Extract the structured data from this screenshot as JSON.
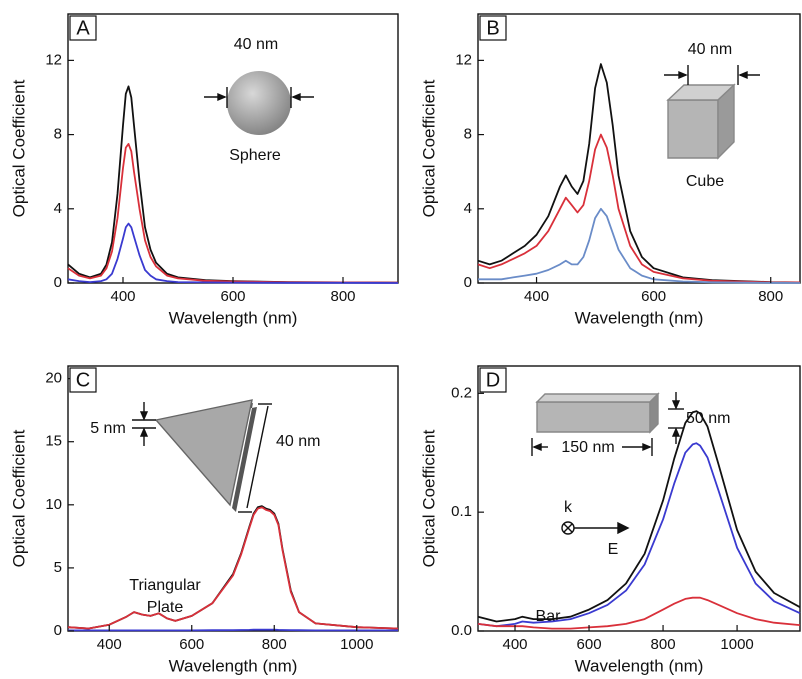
{
  "chart_data": [
    {
      "type": "line",
      "label": "A",
      "xlabel": "Wavelength (nm)",
      "ylabel": "Optical Coefficient",
      "annotations": [
        "40 nm",
        "Sphere"
      ],
      "xlim": [
        300,
        900
      ],
      "ylim": [
        0,
        14.5
      ],
      "xticks": [
        400,
        600,
        800
      ],
      "yticks": [
        0,
        4,
        8,
        12
      ],
      "x": [
        300,
        320,
        340,
        360,
        370,
        380,
        390,
        400,
        405,
        410,
        415,
        420,
        430,
        440,
        450,
        460,
        480,
        500,
        550,
        600,
        700,
        800,
        900
      ],
      "series": [
        {
          "color": "#111111",
          "values": [
            1.0,
            0.5,
            0.3,
            0.5,
            1.0,
            2.2,
            4.8,
            8.5,
            10.2,
            10.6,
            10.0,
            8.5,
            5.5,
            3.0,
            1.8,
            1.1,
            0.5,
            0.3,
            0.15,
            0.1,
            0.05,
            0.03,
            0.02
          ]
        },
        {
          "color": "#d9303a",
          "values": [
            0.8,
            0.4,
            0.25,
            0.4,
            0.8,
            1.7,
            3.5,
            6.2,
            7.3,
            7.5,
            7.1,
            6.0,
            4.0,
            2.3,
            1.4,
            0.9,
            0.4,
            0.25,
            0.12,
            0.08,
            0.04,
            0.03,
            0.02
          ]
        },
        {
          "color": "#3a3ad0",
          "values": [
            0.2,
            0.1,
            0.05,
            0.1,
            0.2,
            0.5,
            1.3,
            2.4,
            3.0,
            3.2,
            3.0,
            2.5,
            1.5,
            0.7,
            0.4,
            0.2,
            0.1,
            0.05,
            0.03,
            0.02,
            0.01,
            0.01,
            0.0
          ]
        }
      ]
    },
    {
      "type": "line",
      "label": "B",
      "xlabel": "Wavelength (nm)",
      "ylabel": "Optical Coefficient",
      "annotations": [
        "40 nm",
        "Cube"
      ],
      "xlim": [
        300,
        850
      ],
      "ylim": [
        0,
        14.5
      ],
      "xticks": [
        400,
        600,
        800
      ],
      "yticks": [
        0,
        4,
        8,
        12
      ],
      "x": [
        300,
        320,
        340,
        360,
        380,
        400,
        420,
        440,
        450,
        460,
        470,
        480,
        490,
        500,
        510,
        520,
        530,
        540,
        560,
        580,
        600,
        650,
        700,
        800,
        850
      ],
      "series": [
        {
          "color": "#111111",
          "values": [
            1.2,
            1.0,
            1.2,
            1.6,
            2.0,
            2.6,
            3.6,
            5.2,
            5.8,
            5.2,
            4.8,
            5.5,
            7.5,
            10.5,
            11.8,
            10.8,
            8.5,
            5.8,
            2.8,
            1.4,
            0.8,
            0.3,
            0.15,
            0.05,
            0.03
          ]
        },
        {
          "color": "#d9303a",
          "values": [
            1.0,
            0.8,
            1.0,
            1.3,
            1.6,
            2.0,
            2.8,
            4.0,
            4.6,
            4.2,
            3.8,
            4.2,
            5.5,
            7.2,
            8.0,
            7.3,
            5.8,
            4.0,
            2.0,
            1.0,
            0.6,
            0.25,
            0.12,
            0.04,
            0.03
          ]
        },
        {
          "color": "#6a8cc8",
          "values": [
            0.2,
            0.2,
            0.2,
            0.3,
            0.4,
            0.5,
            0.7,
            1.0,
            1.2,
            1.0,
            1.0,
            1.4,
            2.3,
            3.5,
            4.0,
            3.6,
            2.7,
            1.8,
            0.8,
            0.4,
            0.2,
            0.08,
            0.04,
            0.01,
            0.0
          ]
        }
      ]
    },
    {
      "type": "line",
      "label": "C",
      "xlabel": "Wavelength (nm)",
      "ylabel": "Optical Coefficient",
      "annotations": [
        "5 nm",
        "40 nm",
        "Triangular",
        "Plate"
      ],
      "xlim": [
        300,
        1100
      ],
      "ylim": [
        0,
        21
      ],
      "xticks": [
        400,
        600,
        800,
        1000
      ],
      "yticks": [
        0,
        5,
        10,
        15,
        20
      ],
      "x": [
        300,
        350,
        400,
        440,
        460,
        480,
        500,
        520,
        540,
        560,
        600,
        650,
        700,
        720,
        740,
        750,
        760,
        770,
        780,
        790,
        800,
        810,
        820,
        840,
        860,
        900,
        1000,
        1100
      ],
      "series": [
        {
          "color": "#111111",
          "values": [
            0.3,
            0.2,
            0.5,
            1.1,
            1.5,
            1.3,
            1.2,
            1.4,
            1.0,
            0.8,
            1.2,
            2.2,
            4.5,
            6.2,
            8.3,
            9.3,
            9.8,
            9.9,
            9.7,
            9.6,
            9.3,
            8.5,
            6.5,
            3.2,
            1.5,
            0.6,
            0.3,
            0.2
          ]
        },
        {
          "color": "#d9303a",
          "values": [
            0.3,
            0.2,
            0.5,
            1.1,
            1.5,
            1.3,
            1.2,
            1.4,
            1.0,
            0.8,
            1.2,
            2.2,
            4.4,
            6.1,
            8.2,
            9.2,
            9.7,
            9.8,
            9.6,
            9.5,
            9.2,
            8.4,
            6.4,
            3.1,
            1.5,
            0.6,
            0.3,
            0.2
          ]
        },
        {
          "color": "#3a3ad0",
          "values": [
            0.05,
            0.05,
            0.05,
            0.05,
            0.05,
            0.05,
            0.05,
            0.05,
            0.05,
            0.05,
            0.05,
            0.06,
            0.07,
            0.08,
            0.09,
            0.1,
            0.1,
            0.1,
            0.1,
            0.1,
            0.1,
            0.09,
            0.08,
            0.07,
            0.06,
            0.05,
            0.05,
            0.05
          ]
        }
      ]
    },
    {
      "type": "line",
      "label": "D",
      "xlabel": "Wavelength (nm)",
      "ylabel": "Optical Coefficient",
      "annotations": [
        "150 nm",
        "50 nm",
        "k",
        "E",
        "Bar"
      ],
      "xlim": [
        300,
        1170
      ],
      "ylim": [
        0,
        0.223
      ],
      "xticks": [
        400,
        600,
        800,
        1000
      ],
      "yticks": [
        {
          "value": 0,
          "label": "0.0"
        },
        0.1,
        0.2
      ],
      "x": [
        300,
        350,
        400,
        420,
        450,
        500,
        550,
        600,
        650,
        700,
        750,
        800,
        830,
        860,
        880,
        890,
        900,
        920,
        950,
        1000,
        1050,
        1100,
        1170
      ],
      "series": [
        {
          "color": "#111111",
          "values": [
            0.012,
            0.008,
            0.01,
            0.012,
            0.01,
            0.01,
            0.012,
            0.018,
            0.026,
            0.04,
            0.065,
            0.11,
            0.145,
            0.175,
            0.184,
            0.185,
            0.183,
            0.172,
            0.14,
            0.085,
            0.05,
            0.032,
            0.02
          ]
        },
        {
          "color": "#3a3ad0",
          "values": [
            0.006,
            0.004,
            0.006,
            0.008,
            0.007,
            0.008,
            0.01,
            0.015,
            0.022,
            0.034,
            0.056,
            0.094,
            0.124,
            0.15,
            0.157,
            0.158,
            0.156,
            0.146,
            0.118,
            0.07,
            0.04,
            0.025,
            0.015
          ]
        },
        {
          "color": "#d9303a",
          "values": [
            0.006,
            0.004,
            0.004,
            0.004,
            0.003,
            0.002,
            0.002,
            0.003,
            0.004,
            0.006,
            0.01,
            0.018,
            0.023,
            0.027,
            0.028,
            0.028,
            0.028,
            0.026,
            0.022,
            0.015,
            0.01,
            0.007,
            0.005
          ]
        }
      ]
    }
  ]
}
